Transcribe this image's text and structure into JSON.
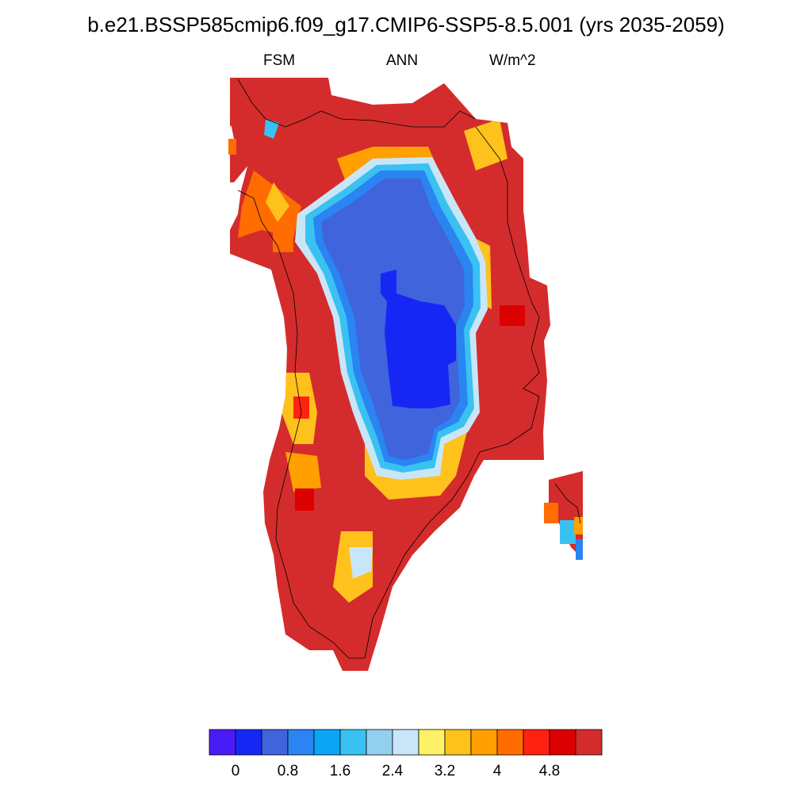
{
  "title": "b.e21.BSSP585cmip6.f09_g17.CMIP6-SSP5-8.5.001 (yrs 2035-2059)",
  "subtitle_left": "FSM",
  "subtitle_center": "ANN",
  "subtitle_right": "W/m^2",
  "colorbar": {
    "colors": [
      "#4a1cf5",
      "#1627f5",
      "#3f64dc",
      "#2a84f1",
      "#0aa5f5",
      "#39c1f2",
      "#93d0ee",
      "#c9e6f8",
      "#fff266",
      "#ffc21c",
      "#ffa000",
      "#ff6c00",
      "#ff2212",
      "#dc0000",
      "#d42c2c"
    ],
    "labels": [
      "0",
      "0.8",
      "1.6",
      "2.4",
      "3.2",
      "4",
      "4.8"
    ]
  },
  "map": {
    "region": "Greenland",
    "variable": "FSM",
    "units": "W/m^2"
  }
}
